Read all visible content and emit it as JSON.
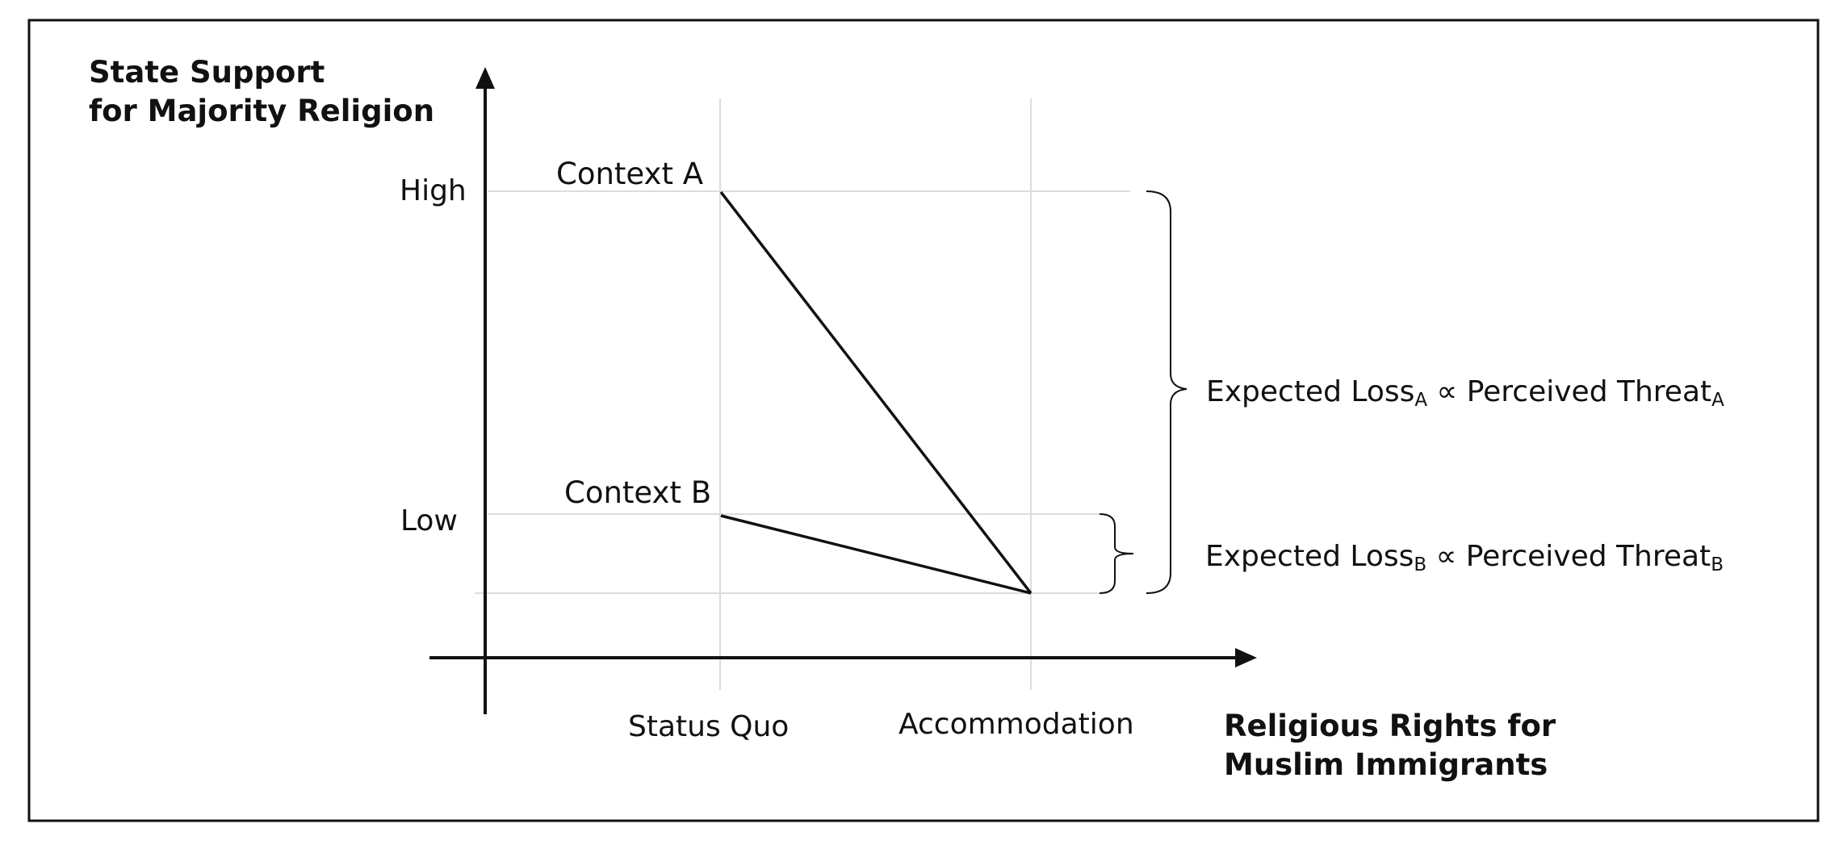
{
  "y_axis": {
    "title_line1": "State Support",
    "title_line2": "for Majority Religion",
    "ticks": [
      "High",
      "Low"
    ]
  },
  "x_axis": {
    "title_line1": "Religious Rights for",
    "title_line2": "Muslim Immigrants",
    "ticks": [
      "Status Quo",
      "Accommodation"
    ]
  },
  "contexts": [
    {
      "label": "Context A",
      "from_level": "High",
      "to": "Accommodation"
    },
    {
      "label": "Context B",
      "from_level": "Low",
      "to": "Accommodation"
    }
  ],
  "annotations": {
    "loss_a": {
      "prefix": "Expected Loss",
      "sub1": "A",
      "middle": " ∝ Perceived Threat",
      "sub2": "A"
    },
    "loss_b": {
      "prefix": "Expected Loss",
      "sub1": "B",
      "middle": " ∝ Perceived Threat",
      "sub2": "B"
    }
  },
  "colors": {
    "line": "#111111",
    "grid": "#dcdcdc",
    "frame": "#111111"
  }
}
